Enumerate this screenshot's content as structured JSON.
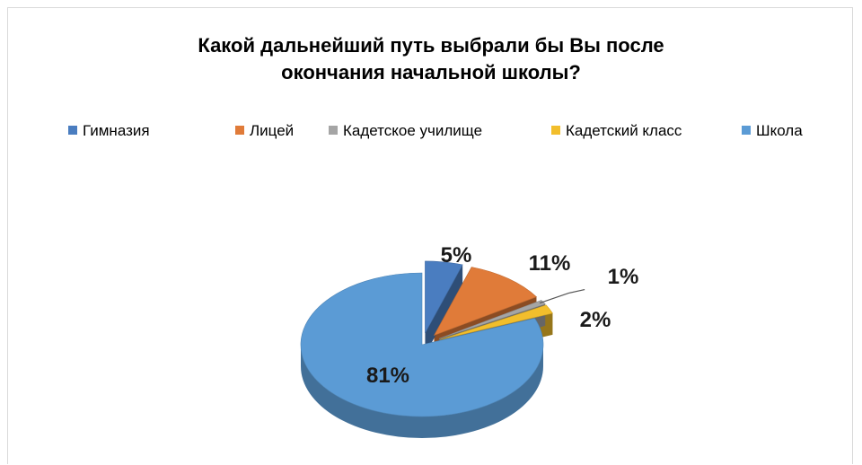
{
  "chart_data": {
    "type": "pie",
    "title_line1": "Какой дальнейший путь выбрали бы Вы  после",
    "title_line2": "окончания начальной школы?",
    "legend_position": "top",
    "three_d": true,
    "categories": [
      "Гимназия",
      "Лицей",
      "Кадетское училище",
      "Кадетский класс",
      "Школа"
    ],
    "values": [
      5,
      11,
      1,
      2,
      81
    ],
    "labels": [
      "5%",
      "11%",
      "1%",
      "2%",
      "81%"
    ],
    "colors": [
      "#4a7dc0",
      "#e07b39",
      "#a5a5a5",
      "#f2be2c",
      "#5b9bd5"
    ]
  }
}
